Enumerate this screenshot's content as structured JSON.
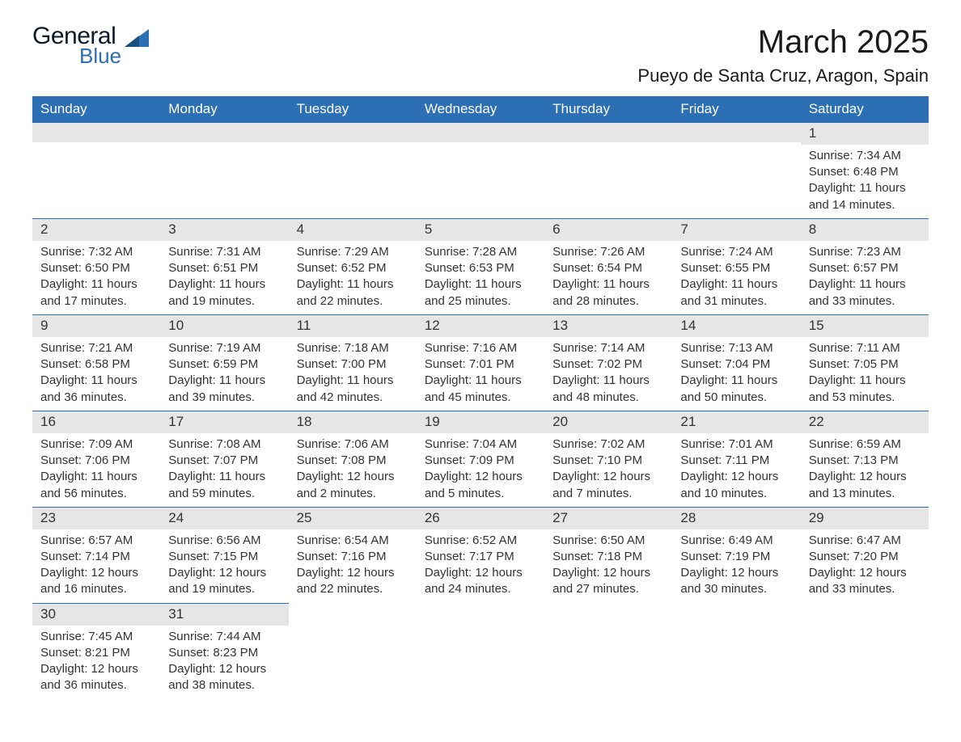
{
  "brand": {
    "line1": "General",
    "line2": "Blue",
    "text_color": "#0a1a2a",
    "accent_color": "#2d6fb5"
  },
  "title": "March 2025",
  "location": "Pueyo de Santa Cruz, Aragon, Spain",
  "colors": {
    "header_bg": "#2d6fb5",
    "header_text": "#ffffff",
    "daynum_bg": "#e6e6e6",
    "row_border": "#2d6fb5"
  },
  "day_headers": [
    "Sunday",
    "Monday",
    "Tuesday",
    "Wednesday",
    "Thursday",
    "Friday",
    "Saturday"
  ],
  "weeks": [
    [
      {
        "n": "",
        "sr": "",
        "ss": "",
        "dl": ""
      },
      {
        "n": "",
        "sr": "",
        "ss": "",
        "dl": ""
      },
      {
        "n": "",
        "sr": "",
        "ss": "",
        "dl": ""
      },
      {
        "n": "",
        "sr": "",
        "ss": "",
        "dl": ""
      },
      {
        "n": "",
        "sr": "",
        "ss": "",
        "dl": ""
      },
      {
        "n": "",
        "sr": "",
        "ss": "",
        "dl": ""
      },
      {
        "n": "1",
        "sr": "Sunrise: 7:34 AM",
        "ss": "Sunset: 6:48 PM",
        "dl": "Daylight: 11 hours and 14 minutes."
      }
    ],
    [
      {
        "n": "2",
        "sr": "Sunrise: 7:32 AM",
        "ss": "Sunset: 6:50 PM",
        "dl": "Daylight: 11 hours and 17 minutes."
      },
      {
        "n": "3",
        "sr": "Sunrise: 7:31 AM",
        "ss": "Sunset: 6:51 PM",
        "dl": "Daylight: 11 hours and 19 minutes."
      },
      {
        "n": "4",
        "sr": "Sunrise: 7:29 AM",
        "ss": "Sunset: 6:52 PM",
        "dl": "Daylight: 11 hours and 22 minutes."
      },
      {
        "n": "5",
        "sr": "Sunrise: 7:28 AM",
        "ss": "Sunset: 6:53 PM",
        "dl": "Daylight: 11 hours and 25 minutes."
      },
      {
        "n": "6",
        "sr": "Sunrise: 7:26 AM",
        "ss": "Sunset: 6:54 PM",
        "dl": "Daylight: 11 hours and 28 minutes."
      },
      {
        "n": "7",
        "sr": "Sunrise: 7:24 AM",
        "ss": "Sunset: 6:55 PM",
        "dl": "Daylight: 11 hours and 31 minutes."
      },
      {
        "n": "8",
        "sr": "Sunrise: 7:23 AM",
        "ss": "Sunset: 6:57 PM",
        "dl": "Daylight: 11 hours and 33 minutes."
      }
    ],
    [
      {
        "n": "9",
        "sr": "Sunrise: 7:21 AM",
        "ss": "Sunset: 6:58 PM",
        "dl": "Daylight: 11 hours and 36 minutes."
      },
      {
        "n": "10",
        "sr": "Sunrise: 7:19 AM",
        "ss": "Sunset: 6:59 PM",
        "dl": "Daylight: 11 hours and 39 minutes."
      },
      {
        "n": "11",
        "sr": "Sunrise: 7:18 AM",
        "ss": "Sunset: 7:00 PM",
        "dl": "Daylight: 11 hours and 42 minutes."
      },
      {
        "n": "12",
        "sr": "Sunrise: 7:16 AM",
        "ss": "Sunset: 7:01 PM",
        "dl": "Daylight: 11 hours and 45 minutes."
      },
      {
        "n": "13",
        "sr": "Sunrise: 7:14 AM",
        "ss": "Sunset: 7:02 PM",
        "dl": "Daylight: 11 hours and 48 minutes."
      },
      {
        "n": "14",
        "sr": "Sunrise: 7:13 AM",
        "ss": "Sunset: 7:04 PM",
        "dl": "Daylight: 11 hours and 50 minutes."
      },
      {
        "n": "15",
        "sr": "Sunrise: 7:11 AM",
        "ss": "Sunset: 7:05 PM",
        "dl": "Daylight: 11 hours and 53 minutes."
      }
    ],
    [
      {
        "n": "16",
        "sr": "Sunrise: 7:09 AM",
        "ss": "Sunset: 7:06 PM",
        "dl": "Daylight: 11 hours and 56 minutes."
      },
      {
        "n": "17",
        "sr": "Sunrise: 7:08 AM",
        "ss": "Sunset: 7:07 PM",
        "dl": "Daylight: 11 hours and 59 minutes."
      },
      {
        "n": "18",
        "sr": "Sunrise: 7:06 AM",
        "ss": "Sunset: 7:08 PM",
        "dl": "Daylight: 12 hours and 2 minutes."
      },
      {
        "n": "19",
        "sr": "Sunrise: 7:04 AM",
        "ss": "Sunset: 7:09 PM",
        "dl": "Daylight: 12 hours and 5 minutes."
      },
      {
        "n": "20",
        "sr": "Sunrise: 7:02 AM",
        "ss": "Sunset: 7:10 PM",
        "dl": "Daylight: 12 hours and 7 minutes."
      },
      {
        "n": "21",
        "sr": "Sunrise: 7:01 AM",
        "ss": "Sunset: 7:11 PM",
        "dl": "Daylight: 12 hours and 10 minutes."
      },
      {
        "n": "22",
        "sr": "Sunrise: 6:59 AM",
        "ss": "Sunset: 7:13 PM",
        "dl": "Daylight: 12 hours and 13 minutes."
      }
    ],
    [
      {
        "n": "23",
        "sr": "Sunrise: 6:57 AM",
        "ss": "Sunset: 7:14 PM",
        "dl": "Daylight: 12 hours and 16 minutes."
      },
      {
        "n": "24",
        "sr": "Sunrise: 6:56 AM",
        "ss": "Sunset: 7:15 PM",
        "dl": "Daylight: 12 hours and 19 minutes."
      },
      {
        "n": "25",
        "sr": "Sunrise: 6:54 AM",
        "ss": "Sunset: 7:16 PM",
        "dl": "Daylight: 12 hours and 22 minutes."
      },
      {
        "n": "26",
        "sr": "Sunrise: 6:52 AM",
        "ss": "Sunset: 7:17 PM",
        "dl": "Daylight: 12 hours and 24 minutes."
      },
      {
        "n": "27",
        "sr": "Sunrise: 6:50 AM",
        "ss": "Sunset: 7:18 PM",
        "dl": "Daylight: 12 hours and 27 minutes."
      },
      {
        "n": "28",
        "sr": "Sunrise: 6:49 AM",
        "ss": "Sunset: 7:19 PM",
        "dl": "Daylight: 12 hours and 30 minutes."
      },
      {
        "n": "29",
        "sr": "Sunrise: 6:47 AM",
        "ss": "Sunset: 7:20 PM",
        "dl": "Daylight: 12 hours and 33 minutes."
      }
    ],
    [
      {
        "n": "30",
        "sr": "Sunrise: 7:45 AM",
        "ss": "Sunset: 8:21 PM",
        "dl": "Daylight: 12 hours and 36 minutes."
      },
      {
        "n": "31",
        "sr": "Sunrise: 7:44 AM",
        "ss": "Sunset: 8:23 PM",
        "dl": "Daylight: 12 hours and 38 minutes."
      },
      {
        "n": "",
        "sr": "",
        "ss": "",
        "dl": ""
      },
      {
        "n": "",
        "sr": "",
        "ss": "",
        "dl": ""
      },
      {
        "n": "",
        "sr": "",
        "ss": "",
        "dl": ""
      },
      {
        "n": "",
        "sr": "",
        "ss": "",
        "dl": ""
      },
      {
        "n": "",
        "sr": "",
        "ss": "",
        "dl": ""
      }
    ]
  ]
}
